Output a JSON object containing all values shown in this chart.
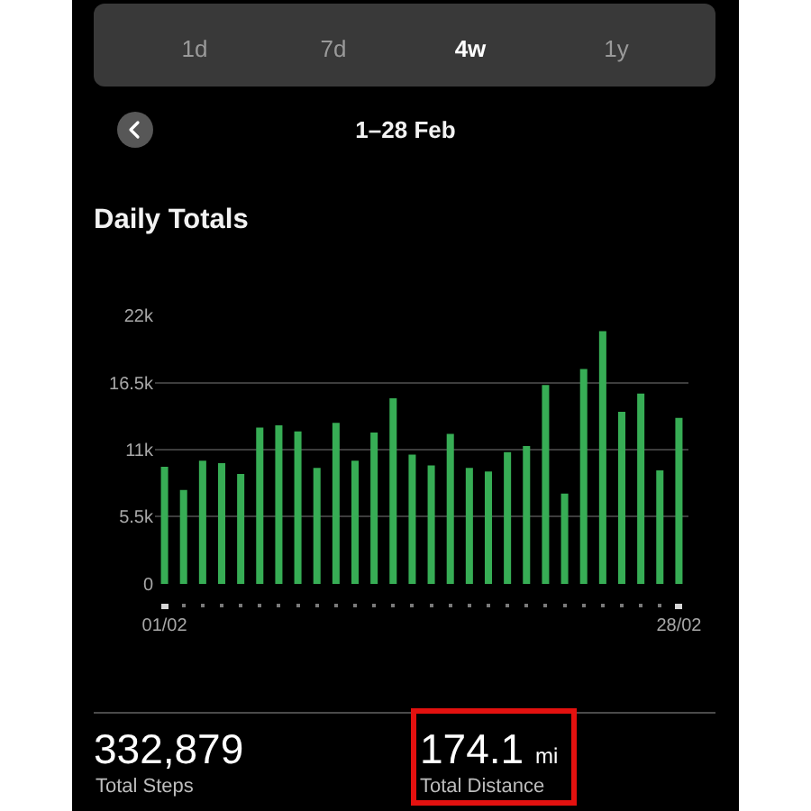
{
  "chart_data": {
    "type": "bar",
    "title": "Daily Totals",
    "subtitle": "1–28 Feb",
    "categories": [
      "01/02",
      null,
      null,
      null,
      null,
      null,
      null,
      null,
      null,
      null,
      null,
      null,
      null,
      null,
      null,
      null,
      null,
      null,
      null,
      null,
      null,
      null,
      null,
      null,
      null,
      null,
      null,
      "28/02"
    ],
    "values": [
      9600,
      7700,
      10100,
      9900,
      9000,
      12800,
      13000,
      12500,
      9500,
      13200,
      10100,
      12400,
      15200,
      10600,
      9700,
      12300,
      9500,
      9200,
      10800,
      11300,
      16300,
      7400,
      17600,
      20700,
      14100,
      15600,
      9300,
      13600
    ],
    "color": "#37ad55",
    "ylim": [
      0,
      22000
    ],
    "yticks": [
      0,
      {
        "value": 5500,
        "label": "5.5k"
      },
      {
        "value": 11000,
        "label": "11k"
      },
      {
        "value": 16500,
        "label": "16.5k"
      },
      {
        "value": 22000,
        "label": "22k"
      }
    ],
    "grid": "y",
    "annotations": [
      "1d",
      "7d",
      "4w",
      "1y",
      "332,879",
      "Total Steps",
      "174.1 mi",
      "Total Distance"
    ]
  }
}
